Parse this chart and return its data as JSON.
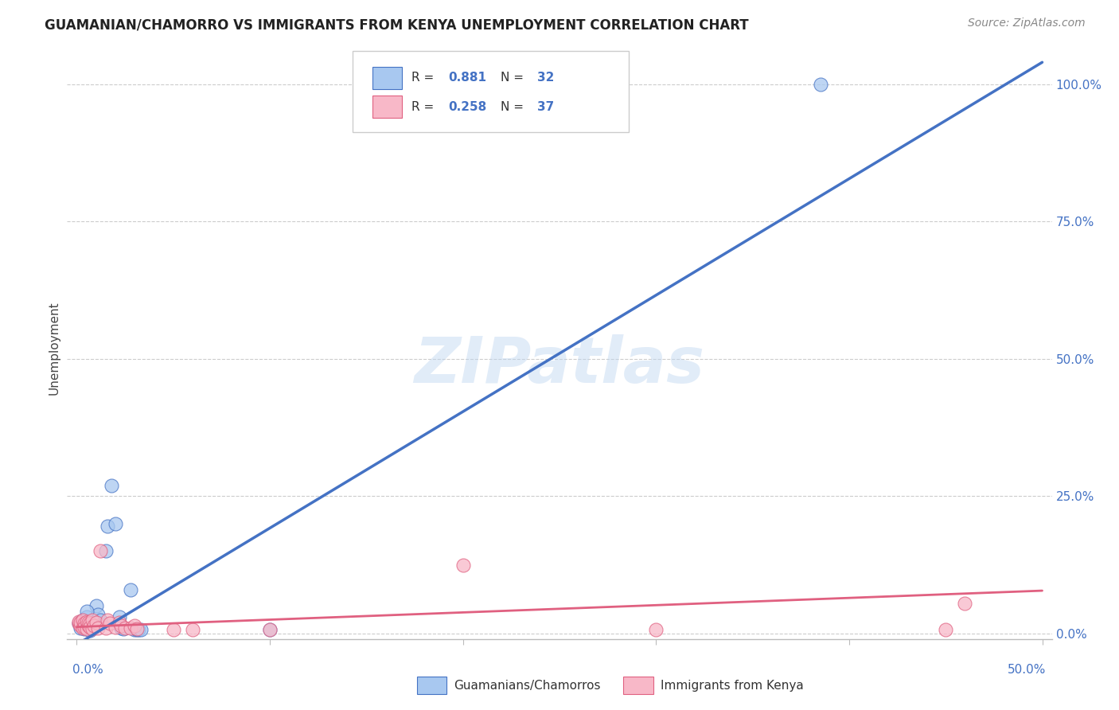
{
  "title": "GUAMANIAN/CHAMORRO VS IMMIGRANTS FROM KENYA UNEMPLOYMENT CORRELATION CHART",
  "source": "Source: ZipAtlas.com",
  "ylabel": "Unemployment",
  "watermark": "ZIPatlas",
  "blue_R": "0.881",
  "blue_N": "32",
  "pink_R": "0.258",
  "pink_N": "37",
  "blue_color": "#A8C8F0",
  "pink_color": "#F8B8C8",
  "blue_line_color": "#4472C4",
  "pink_line_color": "#E06080",
  "blue_scatter": [
    [
      0.001,
      0.018
    ],
    [
      0.002,
      0.022
    ],
    [
      0.002,
      0.01
    ],
    [
      0.003,
      0.012
    ],
    [
      0.003,
      0.025
    ],
    [
      0.004,
      0.008
    ],
    [
      0.004,
      0.02
    ],
    [
      0.005,
      0.015
    ],
    [
      0.005,
      0.03
    ],
    [
      0.006,
      0.018
    ],
    [
      0.006,
      0.01
    ],
    [
      0.007,
      0.022
    ],
    [
      0.007,
      0.005
    ],
    [
      0.008,
      0.012
    ],
    [
      0.01,
      0.05
    ],
    [
      0.011,
      0.035
    ],
    [
      0.012,
      0.025
    ],
    [
      0.015,
      0.15
    ],
    [
      0.016,
      0.195
    ],
    [
      0.018,
      0.27
    ],
    [
      0.02,
      0.2
    ],
    [
      0.022,
      0.03
    ],
    [
      0.023,
      0.01
    ],
    [
      0.024,
      0.008
    ],
    [
      0.028,
      0.08
    ],
    [
      0.03,
      0.007
    ],
    [
      0.031,
      0.007
    ],
    [
      0.032,
      0.007
    ],
    [
      0.033,
      0.007
    ],
    [
      0.1,
      0.007
    ],
    [
      0.385,
      1.0
    ],
    [
      0.005,
      0.04
    ]
  ],
  "pink_scatter": [
    [
      0.001,
      0.018
    ],
    [
      0.001,
      0.022
    ],
    [
      0.002,
      0.015
    ],
    [
      0.002,
      0.02
    ],
    [
      0.003,
      0.025
    ],
    [
      0.003,
      0.01
    ],
    [
      0.004,
      0.018
    ],
    [
      0.004,
      0.012
    ],
    [
      0.005,
      0.022
    ],
    [
      0.005,
      0.008
    ],
    [
      0.006,
      0.015
    ],
    [
      0.006,
      0.02
    ],
    [
      0.007,
      0.018
    ],
    [
      0.007,
      0.012
    ],
    [
      0.008,
      0.025
    ],
    [
      0.008,
      0.008
    ],
    [
      0.009,
      0.015
    ],
    [
      0.01,
      0.02
    ],
    [
      0.011,
      0.01
    ],
    [
      0.012,
      0.15
    ],
    [
      0.015,
      0.01
    ],
    [
      0.016,
      0.025
    ],
    [
      0.017,
      0.018
    ],
    [
      0.02,
      0.012
    ],
    [
      0.022,
      0.02
    ],
    [
      0.023,
      0.015
    ],
    [
      0.025,
      0.01
    ],
    [
      0.028,
      0.01
    ],
    [
      0.03,
      0.015
    ],
    [
      0.031,
      0.008
    ],
    [
      0.2,
      0.125
    ],
    [
      0.3,
      0.007
    ],
    [
      0.45,
      0.007
    ],
    [
      0.46,
      0.055
    ],
    [
      0.1,
      0.007
    ],
    [
      0.05,
      0.007
    ],
    [
      0.06,
      0.007
    ]
  ],
  "blue_line_x": [
    0.0,
    0.5
  ],
  "blue_line_y": [
    -0.02,
    1.04
  ],
  "pink_line_x": [
    0.0,
    0.5
  ],
  "pink_line_y": [
    0.012,
    0.078
  ],
  "xlim": [
    -0.005,
    0.505
  ],
  "ylim": [
    -0.01,
    1.05
  ],
  "right_yticks": [
    0.0,
    0.25,
    0.5,
    0.75,
    1.0
  ],
  "right_yticklabels": [
    "0.0%",
    "25.0%",
    "50.0%",
    "75.0%",
    "100.0%"
  ],
  "xtick_positions": [
    0.0,
    0.1,
    0.2,
    0.3,
    0.4,
    0.5
  ],
  "background_color": "#FFFFFF",
  "grid_color": "#CCCCCC"
}
